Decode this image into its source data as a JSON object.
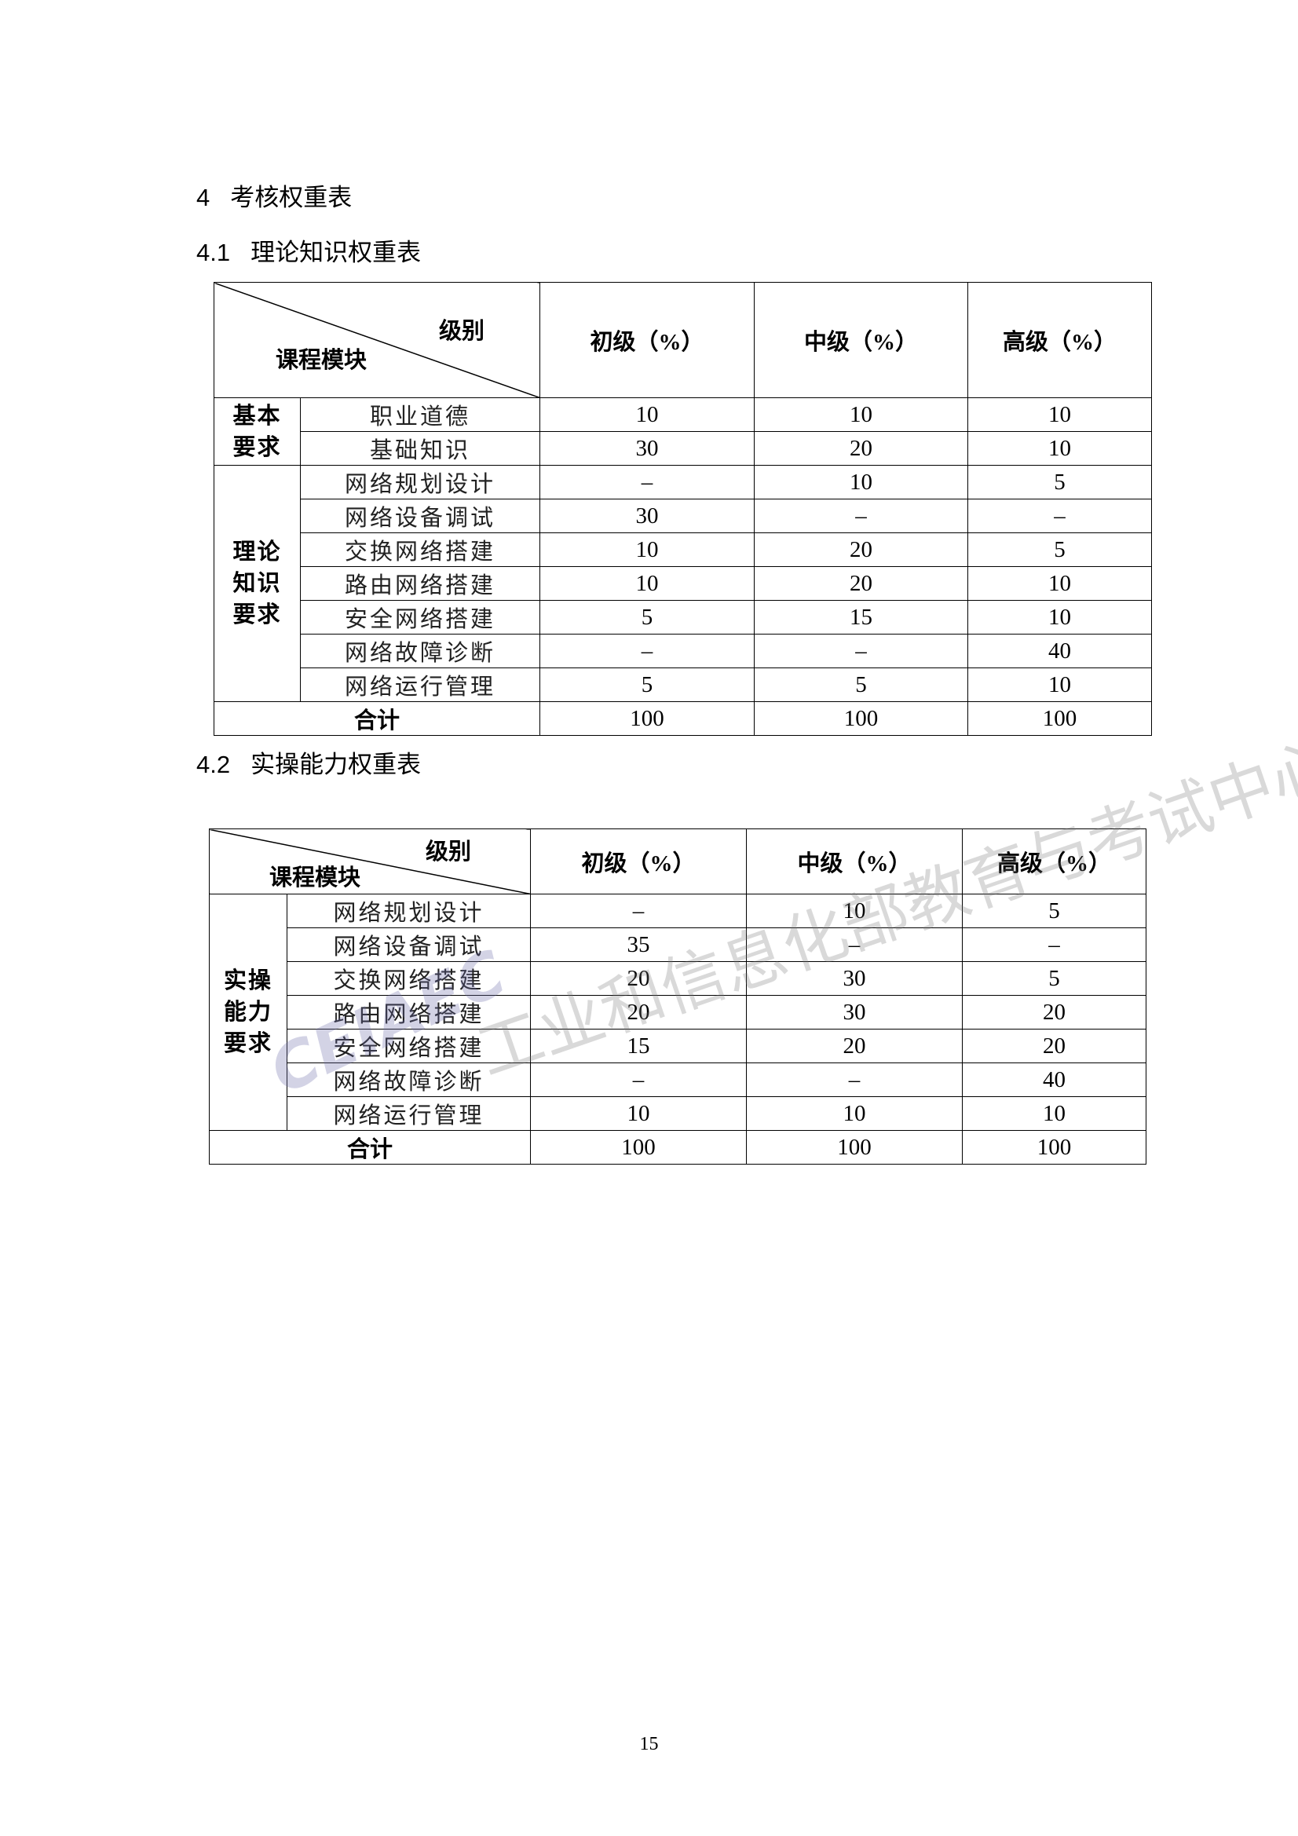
{
  "section": {
    "number": "4",
    "title": "考核权重表"
  },
  "theory": {
    "number": "4.1",
    "title": "理论知识权重表",
    "header": {
      "level_label": "级别",
      "module_label": "课程模块",
      "cols": [
        "初级（%）",
        "中级（%）",
        "高级（%）"
      ]
    },
    "groups": [
      {
        "label": "基本要求",
        "rows": [
          {
            "module": "职业道德",
            "values": [
              "10",
              "10",
              "10"
            ]
          },
          {
            "module": "基础知识",
            "values": [
              "30",
              "20",
              "10"
            ]
          }
        ]
      },
      {
        "label": "理论知识要求",
        "rows": [
          {
            "module": "网络规划设计",
            "values": [
              "–",
              "10",
              "5"
            ]
          },
          {
            "module": "网络设备调试",
            "values": [
              "30",
              "–",
              "–"
            ]
          },
          {
            "module": "交换网络搭建",
            "values": [
              "10",
              "20",
              "5"
            ]
          },
          {
            "module": "路由网络搭建",
            "values": [
              "10",
              "20",
              "10"
            ]
          },
          {
            "module": "安全网络搭建",
            "values": [
              "5",
              "15",
              "10"
            ]
          },
          {
            "module": "网络故障诊断",
            "values": [
              "–",
              "–",
              "40"
            ]
          },
          {
            "module": "网络运行管理",
            "values": [
              "5",
              "5",
              "10"
            ]
          }
        ]
      }
    ],
    "total": {
      "label": "合计",
      "values": [
        "100",
        "100",
        "100"
      ]
    }
  },
  "practice": {
    "number": "4.2",
    "title": "实操能力权重表",
    "header": {
      "level_label": "级别",
      "module_label": "课程模块",
      "cols": [
        "初级（%）",
        "中级（%）",
        "高级（%）"
      ]
    },
    "groups": [
      {
        "label": "实操能力要求",
        "rows": [
          {
            "module": "网络规划设计",
            "values": [
              "–",
              "10",
              "5"
            ]
          },
          {
            "module": "网络设备调试",
            "values": [
              "35",
              "–",
              "–"
            ]
          },
          {
            "module": "交换网络搭建",
            "values": [
              "20",
              "30",
              "5"
            ]
          },
          {
            "module": "路由网络搭建",
            "values": [
              "20",
              "30",
              "20"
            ]
          },
          {
            "module": "安全网络搭建",
            "values": [
              "15",
              "20",
              "20"
            ]
          },
          {
            "module": "网络故障诊断",
            "values": [
              "–",
              "–",
              "40"
            ]
          },
          {
            "module": "网络运行管理",
            "values": [
              "10",
              "10",
              "10"
            ]
          }
        ]
      }
    ],
    "total": {
      "label": "合计",
      "values": [
        "100",
        "100",
        "100"
      ]
    }
  },
  "watermark": {
    "text": "工业和信息化部教育与考试中心",
    "logo": "CEIAEC"
  },
  "page_number": "15"
}
